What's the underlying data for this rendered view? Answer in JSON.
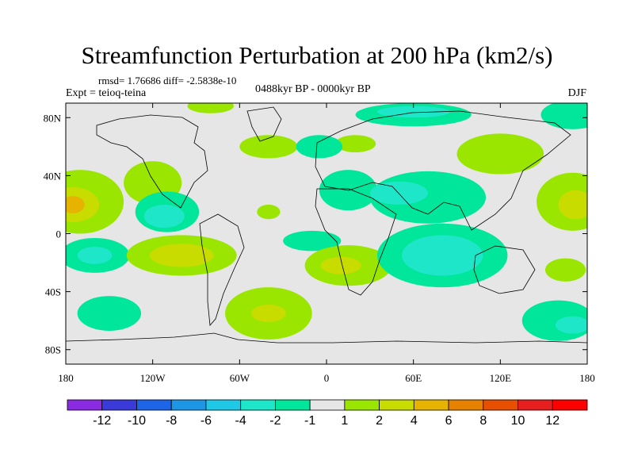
{
  "chart_data": {
    "type": "heatmap",
    "title": "Streamfunction Perturbation at 200 hPa (km2/s)",
    "stats": "rmsd= 1.76686 diff= -2.5838e-10",
    "experiment": "Expt = teioq-teina",
    "period": "0488kyr BP - 0000kyr BP",
    "season": "DJF",
    "xlim": [
      -180,
      180
    ],
    "ylim": [
      -90,
      90
    ],
    "x_ticks": [
      {
        "value": -180,
        "label": "180"
      },
      {
        "value": -120,
        "label": "120W"
      },
      {
        "value": -60,
        "label": "60W"
      },
      {
        "value": 0,
        "label": "0"
      },
      {
        "value": 60,
        "label": "60E"
      },
      {
        "value": 120,
        "label": "120E"
      },
      {
        "value": 180,
        "label": "180"
      }
    ],
    "y_ticks": [
      {
        "value": 80,
        "label": "80N"
      },
      {
        "value": 40,
        "label": "40N"
      },
      {
        "value": 0,
        "label": "0"
      },
      {
        "value": -40,
        "label": "40S"
      },
      {
        "value": -80,
        "label": "80S"
      }
    ],
    "contour_levels": [
      -12,
      -10,
      -8,
      -6,
      -4,
      -2,
      -1,
      1,
      2,
      4,
      6,
      8,
      10,
      12
    ],
    "colorbar_labels": [
      "-12",
      "-10",
      "-8",
      "-6",
      "-4",
      "-2",
      "-1",
      "1",
      "2",
      "4",
      "6",
      "8",
      "10",
      "12"
    ],
    "colorbar_colors": [
      "#8a2be2",
      "#3a3ad8",
      "#1e64e6",
      "#1e96e6",
      "#1ec8e6",
      "#1ee6c8",
      "#00e69a",
      "#e6e6e6",
      "#9ae600",
      "#c8dc00",
      "#e6b400",
      "#e68200",
      "#e65000",
      "#e61e1e",
      "#ff0000"
    ],
    "features": [
      {
        "lon": -80,
        "lat": 88,
        "a": 16,
        "b": 5,
        "value": 1.5
      },
      {
        "lon": -40,
        "lat": 60,
        "a": 20,
        "b": 8,
        "value": 1.5
      },
      {
        "lon": 20,
        "lat": 62,
        "a": 14,
        "b": 6,
        "value": 1.5
      },
      {
        "lon": 60,
        "lat": 82,
        "a": 40,
        "b": 8,
        "value": -1.5
      },
      {
        "lon": 60,
        "lat": 84,
        "a": 25,
        "b": 4,
        "value": -3
      },
      {
        "lon": 170,
        "lat": 82,
        "a": 22,
        "b": 10,
        "value": -1.5
      },
      {
        "lon": 120,
        "lat": 55,
        "a": 30,
        "b": 14,
        "value": 1.5
      },
      {
        "lon": 15,
        "lat": 30,
        "a": 20,
        "b": 14,
        "value": -1.5
      },
      {
        "lon": 70,
        "lat": 25,
        "a": 40,
        "b": 18,
        "value": -1.5
      },
      {
        "lon": 50,
        "lat": 28,
        "a": 20,
        "b": 8,
        "value": -3
      },
      {
        "lon": -5,
        "lat": 60,
        "a": 16,
        "b": 8,
        "value": -1.5
      },
      {
        "lon": -170,
        "lat": 22,
        "a": 30,
        "b": 22,
        "value": 1.5
      },
      {
        "lon": -175,
        "lat": 20,
        "a": 18,
        "b": 12,
        "value": 3
      },
      {
        "lon": -175,
        "lat": 20,
        "a": 8,
        "b": 6,
        "value": 5
      },
      {
        "lon": 170,
        "lat": 22,
        "a": 25,
        "b": 20,
        "value": 1.5
      },
      {
        "lon": 172,
        "lat": 20,
        "a": 12,
        "b": 10,
        "value": 3
      },
      {
        "lon": -120,
        "lat": 35,
        "a": 20,
        "b": 15,
        "value": 1.5
      },
      {
        "lon": -110,
        "lat": 15,
        "a": 22,
        "b": 14,
        "value": -1.5
      },
      {
        "lon": -112,
        "lat": 12,
        "a": 14,
        "b": 8,
        "value": -3
      },
      {
        "lon": -40,
        "lat": 15,
        "a": 8,
        "b": 5,
        "value": 1.5
      },
      {
        "lon": -160,
        "lat": -15,
        "a": 24,
        "b": 12,
        "value": -1.5
      },
      {
        "lon": -160,
        "lat": -15,
        "a": 12,
        "b": 6,
        "value": -3
      },
      {
        "lon": -100,
        "lat": -15,
        "a": 38,
        "b": 14,
        "value": 1.5
      },
      {
        "lon": -100,
        "lat": -15,
        "a": 22,
        "b": 8,
        "value": 3
      },
      {
        "lon": -10,
        "lat": -5,
        "a": 20,
        "b": 7,
        "value": -1.5
      },
      {
        "lon": 15,
        "lat": -22,
        "a": 30,
        "b": 14,
        "value": 1.5
      },
      {
        "lon": 10,
        "lat": -22,
        "a": 14,
        "b": 6,
        "value": 3
      },
      {
        "lon": 80,
        "lat": -15,
        "a": 45,
        "b": 22,
        "value": -1.5
      },
      {
        "lon": 80,
        "lat": -15,
        "a": 28,
        "b": 14,
        "value": -3
      },
      {
        "lon": 165,
        "lat": -25,
        "a": 14,
        "b": 8,
        "value": 1.5
      },
      {
        "lon": -40,
        "lat": -55,
        "a": 30,
        "b": 18,
        "value": 1.5
      },
      {
        "lon": -40,
        "lat": -55,
        "a": 12,
        "b": 6,
        "value": 3
      },
      {
        "lon": -150,
        "lat": -55,
        "a": 22,
        "b": 12,
        "value": -1.5
      },
      {
        "lon": 160,
        "lat": -60,
        "a": 25,
        "b": 14,
        "value": -1.5
      },
      {
        "lon": 170,
        "lat": -63,
        "a": 12,
        "b": 6,
        "value": -3
      }
    ]
  }
}
